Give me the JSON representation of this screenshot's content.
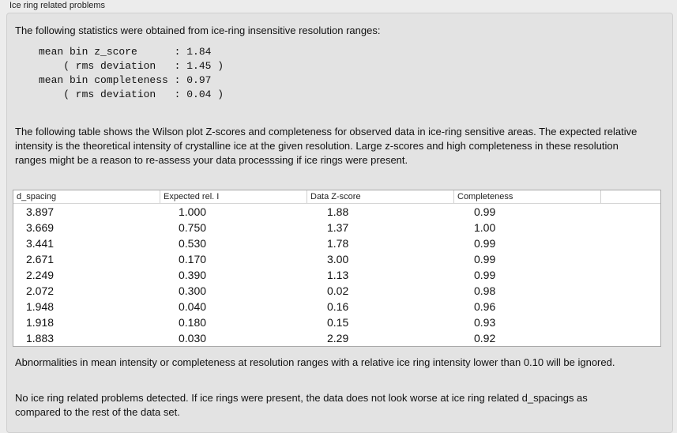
{
  "title": "Ice ring related problems",
  "intro": "The following statistics were obtained from ice-ring insensitive resolution ranges:",
  "stats": "mean bin z_score      : 1.84\n    ( rms deviation   : 1.45 )\nmean bin completeness : 0.97\n    ( rms deviation   : 0.04 )",
  "table_intro": "The following table shows the Wilson plot Z-scores and completeness for observed data in ice-ring sensitive areas. The expected relative intensity is the theoretical intensity of crystalline ice at the given resolution. Large z-scores and high completeness in these resolution ranges might be a reason to re-assess your data processsing if ice rings were present.",
  "columns": [
    "d_spacing",
    "Expected rel. I",
    "Data Z-score",
    "Completeness"
  ],
  "rows": [
    [
      "3.897",
      "1.000",
      "1.88",
      "0.99"
    ],
    [
      "3.669",
      "0.750",
      "1.37",
      "1.00"
    ],
    [
      "3.441",
      "0.530",
      "1.78",
      "0.99"
    ],
    [
      "2.671",
      "0.170",
      "3.00",
      "0.99"
    ],
    [
      "2.249",
      "0.390",
      "1.13",
      "0.99"
    ],
    [
      "2.072",
      "0.300",
      "0.02",
      "0.98"
    ],
    [
      "1.948",
      "0.040",
      "0.16",
      "0.96"
    ],
    [
      "1.918",
      "0.180",
      "0.15",
      "0.93"
    ],
    [
      "1.883",
      "0.030",
      "2.29",
      "0.92"
    ]
  ],
  "note1": "Abnormalities in mean intensity or completeness at resolution ranges with a relative ice ring intensity lower than 0.10 will be ignored.",
  "note2": "No ice ring related problems detected. If ice rings were present, the data does not look worse at ice ring related d_spacings as compared to the rest of the data set."
}
